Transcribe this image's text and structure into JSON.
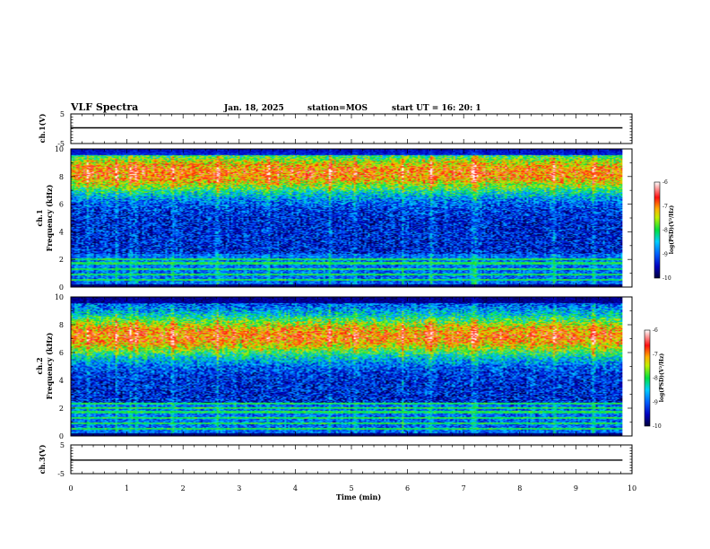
{
  "header": {
    "title": "VLF Spectra",
    "date": "Jan. 18, 2025",
    "station": "station=MOS",
    "start_ut": "start UT =  16: 20: 1"
  },
  "chart_data": [
    {
      "type": "line",
      "name": "ch1-voltage",
      "ylabel": "ch.1(V)",
      "xlim": [
        0,
        10
      ],
      "ylim": [
        -5,
        5
      ],
      "ytick_labels": [
        "5",
        "-5"
      ],
      "series": [
        {
          "x": [
            0,
            9.83
          ],
          "y": [
            0.3,
            0.3
          ]
        }
      ]
    },
    {
      "type": "heatmap",
      "name": "ch1-spectrogram",
      "ylabel_line1": "ch.1",
      "ylabel_line2": "Frequency (kHz)",
      "xlim": [
        0,
        10
      ],
      "ylim": [
        0,
        10
      ],
      "data_end_min": 9.83,
      "ytick_labels": [
        "0",
        "2",
        "4",
        "6",
        "8",
        "10"
      ],
      "band_peak_khz": 8.3,
      "lines_khz": [
        0.5,
        0.9,
        1.3,
        1.7,
        2.0
      ],
      "spikes_min": [
        0.3,
        0.8,
        1.05,
        1.15,
        1.8,
        2.6,
        3.5,
        4.6,
        5.05,
        5.9,
        6.4,
        7.15,
        7.2,
        8.6,
        9.3
      ],
      "colorbar": {
        "min": -10,
        "max": -6,
        "ticks": [
          "-6",
          "-7",
          "-8",
          "-9",
          "-10"
        ],
        "label": "log(PSD)(V²/Hz)"
      }
    },
    {
      "type": "heatmap",
      "name": "ch2-spectrogram",
      "ylabel_line1": "ch.2",
      "ylabel_line2": "Frequency (kHz)",
      "xlim": [
        0,
        10
      ],
      "ylim": [
        0,
        10
      ],
      "data_end_min": 9.83,
      "ytick_labels": [
        "0",
        "2",
        "4",
        "6",
        "8",
        "10"
      ],
      "band_peak_khz": 7.2,
      "lines_khz": [
        0.5,
        0.9,
        1.3,
        1.7,
        2.0,
        2.3
      ],
      "spikes_min": [
        0.3,
        0.8,
        1.05,
        1.15,
        1.8,
        2.6,
        3.5,
        4.6,
        5.05,
        5.9,
        6.4,
        7.15,
        7.2,
        8.6,
        9.3
      ],
      "colorbar": {
        "min": -10,
        "max": -6,
        "ticks": [
          "-6",
          "-7",
          "-8",
          "-9",
          "-10"
        ],
        "label": "log(PSD)(V²/Hz)"
      }
    },
    {
      "type": "line",
      "name": "ch3-voltage",
      "ylabel": "ch.3(V)",
      "xlim": [
        0,
        10
      ],
      "ylim": [
        -5,
        5
      ],
      "ytick_labels": [
        "5",
        "-5"
      ],
      "series": [
        {
          "x": [
            0,
            9.83
          ],
          "y": [
            -0.3,
            -0.3
          ]
        }
      ]
    }
  ],
  "xaxis": {
    "label": "Time (min)",
    "ticks": [
      "0",
      "1",
      "2",
      "3",
      "4",
      "5",
      "6",
      "7",
      "8",
      "9",
      "10"
    ]
  }
}
